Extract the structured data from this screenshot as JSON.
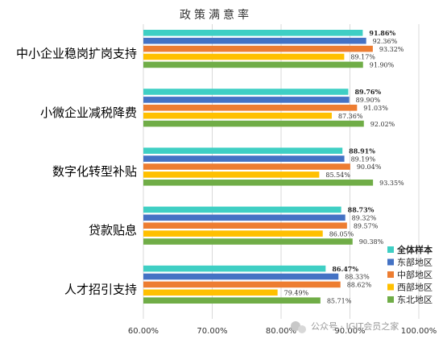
{
  "chart_data": {
    "type": "bar",
    "orientation": "horizontal",
    "title": "政策满意率",
    "categories": [
      "中小企业稳岗扩岗支持",
      "小微企业减税降费",
      "数字化转型补贴",
      "贷款贴息",
      "人才招引支持"
    ],
    "series": [
      {
        "name": "全体样本",
        "color": "#3FCFC4",
        "values": [
          91.86,
          89.76,
          88.91,
          88.73,
          86.47
        ],
        "labels": [
          "91.86%",
          "89.76%",
          "88.91%",
          "88.73%",
          "86.47%"
        ]
      },
      {
        "name": "东部地区",
        "color": "#4472C4",
        "values": [
          92.36,
          89.9,
          89.19,
          89.32,
          88.33
        ],
        "labels": [
          "92.36%",
          "89.90%",
          "89.19%",
          "89.32%",
          "88.33%"
        ]
      },
      {
        "name": "中部地区",
        "color": "#ED7D31",
        "values": [
          93.32,
          91.03,
          90.04,
          89.57,
          88.62
        ],
        "labels": [
          "93.32%",
          "91.03%",
          "90.04%",
          "89.57%",
          "88.62%"
        ]
      },
      {
        "name": "西部地区",
        "color": "#FFC000",
        "values": [
          89.17,
          87.36,
          85.54,
          86.05,
          79.49
        ],
        "labels": [
          "89.17%",
          "87.36%",
          "85.54%",
          "86.05%",
          "79.49%"
        ]
      },
      {
        "name": "东北地区",
        "color": "#70AD47",
        "values": [
          91.9,
          92.02,
          93.35,
          90.38,
          85.71
        ],
        "labels": [
          "91.90%",
          "92.02%",
          "93.35%",
          "90.38%",
          "85.71%"
        ]
      }
    ],
    "xlim": [
      60,
      100
    ],
    "xticks": [
      60,
      70,
      80,
      90,
      100
    ],
    "xtick_labels": [
      "60.00%",
      "70.00%",
      "80.00%",
      "90.00%",
      "100.00%"
    ],
    "grid": "vertical",
    "legend_position": "right"
  },
  "watermark": "公众号 · IGIT会员之家"
}
